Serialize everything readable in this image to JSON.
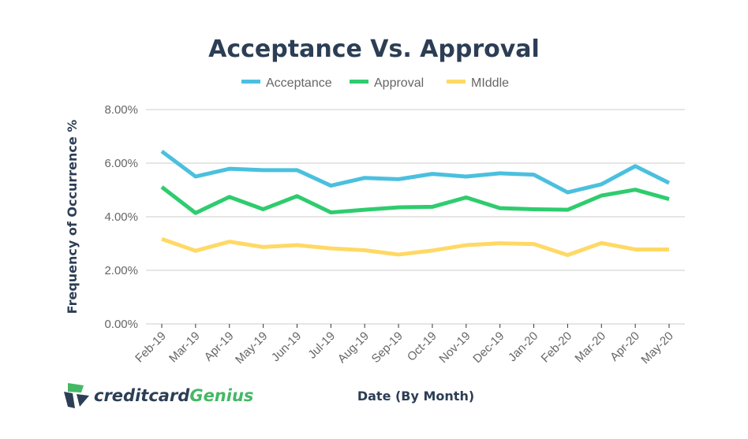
{
  "chart_data": {
    "type": "line",
    "title": "Acceptance Vs. Approval",
    "xlabel": "Date (By Month)",
    "ylabel": "Frequency of Occurrence %",
    "ylim": [
      0,
      8
    ],
    "yticks": [
      "0.00%",
      "2.00%",
      "4.00%",
      "6.00%",
      "8.00%"
    ],
    "ytick_values": [
      0,
      2,
      4,
      6,
      8
    ],
    "grid": true,
    "legend_position": "top-center",
    "categories": [
      "Feb-19",
      "Mar-19",
      "Apr-19",
      "May-19",
      "Jun-19",
      "Jul-19",
      "Aug-19",
      "Sep-19",
      "Oct-19",
      "Nov-19",
      "Dec-19",
      "Jan-20",
      "Feb-20",
      "Mar-20",
      "Apr-20",
      "May-20"
    ],
    "series": [
      {
        "name": "Acceptance",
        "color": "#4bc0de",
        "values": [
          6.44,
          5.5,
          5.79,
          5.74,
          5.74,
          5.16,
          5.45,
          5.4,
          5.6,
          5.5,
          5.62,
          5.57,
          4.91,
          5.21,
          5.89,
          5.26
        ]
      },
      {
        "name": "Approval",
        "color": "#2ecc6e",
        "values": [
          5.11,
          4.14,
          4.74,
          4.28,
          4.77,
          4.16,
          4.26,
          4.35,
          4.37,
          4.72,
          4.32,
          4.28,
          4.26,
          4.79,
          5.01,
          4.66
        ]
      },
      {
        "name": "MIddle",
        "color": "#ffd966",
        "values": [
          3.17,
          2.73,
          3.07,
          2.87,
          2.94,
          2.82,
          2.75,
          2.59,
          2.74,
          2.94,
          3.01,
          2.98,
          2.57,
          3.02,
          2.78,
          2.78
        ]
      }
    ]
  },
  "logo": {
    "text_part1": "creditcard",
    "text_part2": "Genius",
    "color_dark": "#2c3e55",
    "color_green": "#45b864"
  }
}
